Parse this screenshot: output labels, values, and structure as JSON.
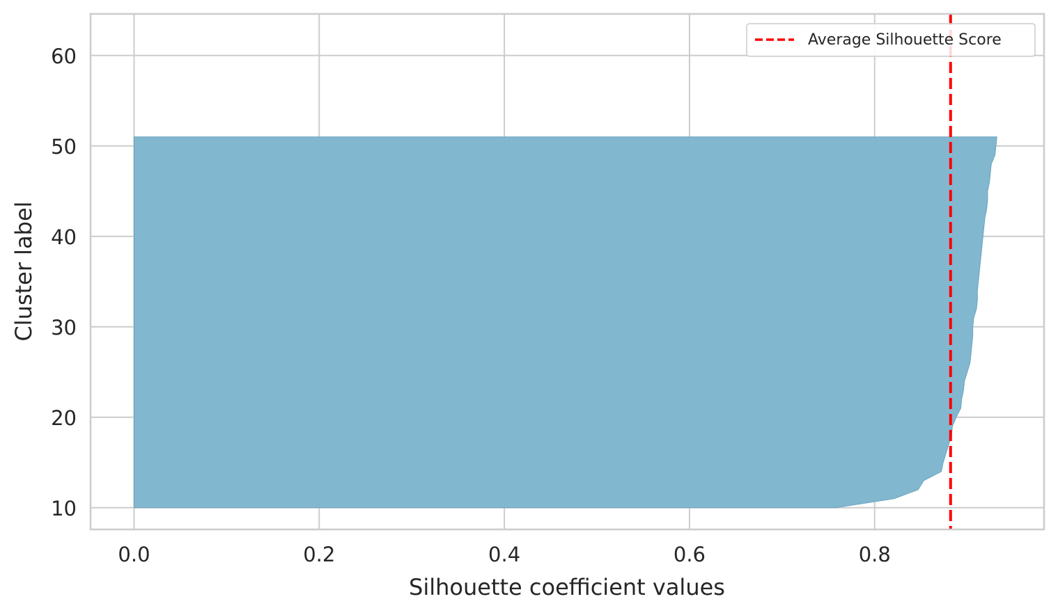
{
  "chart_data": {
    "type": "area",
    "title": "",
    "xlabel": "Silhouette coefficient values",
    "ylabel": "Cluster label",
    "xlim": [
      -0.047,
      0.983
    ],
    "ylim": [
      7.6,
      64.6
    ],
    "xticks": [
      0.0,
      0.2,
      0.4,
      0.6,
      0.8
    ],
    "xtick_labels": [
      "0.0",
      "0.2",
      "0.4",
      "0.6",
      "0.8"
    ],
    "yticks": [
      10,
      20,
      30,
      40,
      50,
      60
    ],
    "ytick_labels": [
      "10",
      "20",
      "30",
      "40",
      "50",
      "60"
    ],
    "grid": true,
    "legend_position": "top-right",
    "fill_color": "#7fb6cf",
    "average_line_color": "#ff0000",
    "series": [
      {
        "name": "",
        "kind": "silhouette-fill",
        "y": [
          10,
          11,
          12,
          13,
          14,
          15,
          16,
          17,
          18,
          19,
          20,
          21,
          22,
          23,
          24,
          25,
          26,
          27,
          28,
          29,
          30,
          31,
          32,
          33,
          34,
          35,
          36,
          37,
          38,
          39,
          40,
          41,
          42,
          43,
          44,
          45,
          46,
          47,
          48,
          49,
          50,
          51
        ],
        "x": [
          0.758,
          0.821,
          0.847,
          0.853,
          0.872,
          0.874,
          0.877,
          0.88,
          0.883,
          0.884,
          0.888,
          0.893,
          0.894,
          0.896,
          0.897,
          0.9,
          0.903,
          0.904,
          0.905,
          0.906,
          0.906,
          0.907,
          0.91,
          0.911,
          0.911,
          0.912,
          0.913,
          0.914,
          0.915,
          0.916,
          0.917,
          0.918,
          0.919,
          0.921,
          0.922,
          0.922,
          0.924,
          0.925,
          0.926,
          0.93,
          0.931,
          0.932
        ]
      },
      {
        "name": "Average Silhouette Score",
        "kind": "vline",
        "x": 0.882
      }
    ]
  }
}
